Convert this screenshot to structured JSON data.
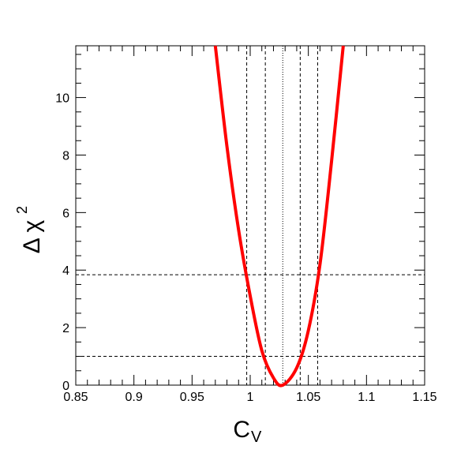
{
  "chart_data": {
    "type": "line",
    "title": "",
    "xlabel": "C",
    "xlabel_sub": "V",
    "ylabel": "Δ χ",
    "ylabel_sup": "2",
    "xlim": [
      0.85,
      1.15
    ],
    "ylim": [
      0,
      11.8
    ],
    "x_ticks": [
      0.85,
      0.9,
      0.95,
      1.0,
      1.05,
      1.1,
      1.15
    ],
    "x_tick_labels": [
      "0.85",
      "0.9",
      "0.95",
      "1",
      "1.05",
      "1.1",
      "1.15"
    ],
    "y_ticks": [
      0,
      2,
      4,
      6,
      8,
      10
    ],
    "y_tick_labels": [
      "0",
      "2",
      "4",
      "6",
      "8",
      "10"
    ],
    "grid": false,
    "series": [
      {
        "color": "#ff0000",
        "minimum_x": 1.028,
        "x": [
          0.97,
          0.98,
          0.99,
          1.0,
          1.01,
          1.02,
          1.028,
          1.04,
          1.05,
          1.06,
          1.07,
          1.08
        ],
        "y": [
          11.8,
          8.3,
          5.4,
          3.1,
          1.2,
          0.25,
          0.0,
          0.6,
          1.9,
          4.2,
          7.8,
          11.8
        ]
      }
    ],
    "reference_lines": {
      "horizontal": [
        1.0,
        3.84
      ],
      "vertical_dashed": [
        0.997,
        1.013,
        1.043,
        1.058
      ],
      "vertical_dotted": [
        1.028
      ]
    }
  }
}
